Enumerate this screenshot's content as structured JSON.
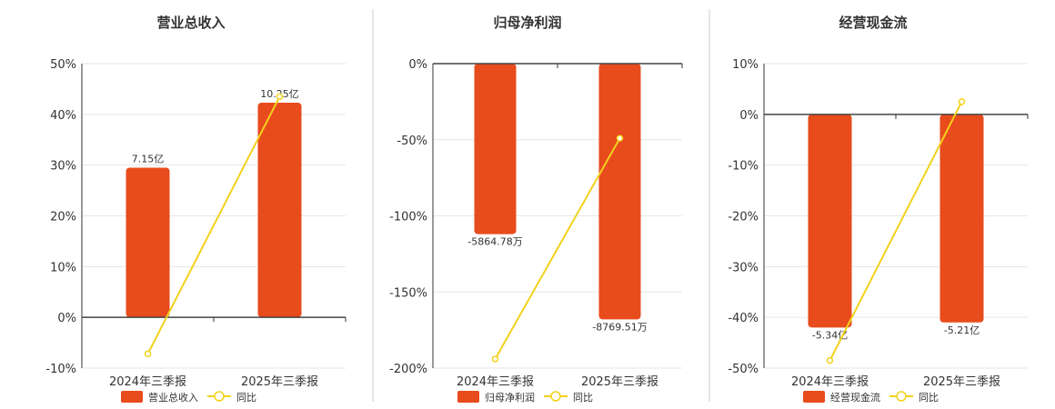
{
  "chart_data": [
    {
      "type": "bar",
      "title": "营业总收入",
      "categories": [
        "2024年三季报",
        "2025年三季报"
      ],
      "series": [
        {
          "name": "营业总收入",
          "kind": "bar",
          "values": [
            29.5,
            42.3
          ],
          "labels": [
            "7.15亿",
            "10.25亿"
          ]
        },
        {
          "name": "同比",
          "kind": "line",
          "values": [
            -7.2,
            43.5
          ]
        }
      ],
      "ylim": [
        -10,
        50
      ],
      "yticks": [
        -10,
        0,
        10,
        20,
        30,
        40,
        50
      ],
      "ytick_labels": [
        "-10%",
        "0%",
        "10%",
        "20%",
        "30%",
        "40%",
        "50%"
      ],
      "grid": true,
      "legend": "bottom"
    },
    {
      "type": "bar",
      "title": "归母净利润",
      "categories": [
        "2024年三季报",
        "2025年三季报"
      ],
      "series": [
        {
          "name": "归母净利润",
          "kind": "bar",
          "values": [
            -112,
            -168
          ],
          "labels": [
            "-5864.78万",
            "-8769.51万"
          ]
        },
        {
          "name": "同比",
          "kind": "line",
          "values": [
            -194,
            -49
          ]
        }
      ],
      "ylim": [
        -200,
        0
      ],
      "yticks": [
        -200,
        -150,
        -100,
        -50,
        0
      ],
      "ytick_labels": [
        "-200%",
        "-150%",
        "-100%",
        "-50%",
        "0%"
      ],
      "grid": true,
      "legend": "bottom"
    },
    {
      "type": "bar",
      "title": "经营现金流",
      "categories": [
        "2024年三季报",
        "2025年三季报"
      ],
      "series": [
        {
          "name": "经营现金流",
          "kind": "bar",
          "values": [
            -42,
            -41
          ],
          "labels": [
            "-5.34亿",
            "-5.21亿"
          ]
        },
        {
          "name": "同比",
          "kind": "line",
          "values": [
            -48.5,
            2.5
          ]
        }
      ],
      "ylim": [
        -50,
        10
      ],
      "yticks": [
        -50,
        -40,
        -30,
        -20,
        -10,
        0,
        10
      ],
      "ytick_labels": [
        "-50%",
        "-40%",
        "-30%",
        "-20%",
        "-10%",
        "0%",
        "10%"
      ],
      "grid": true,
      "legend": "bottom"
    }
  ],
  "colors": {
    "bar": "#e84b1c",
    "line": "#f2d21c",
    "axis": "#333333",
    "grid": "#e6e6e6"
  }
}
